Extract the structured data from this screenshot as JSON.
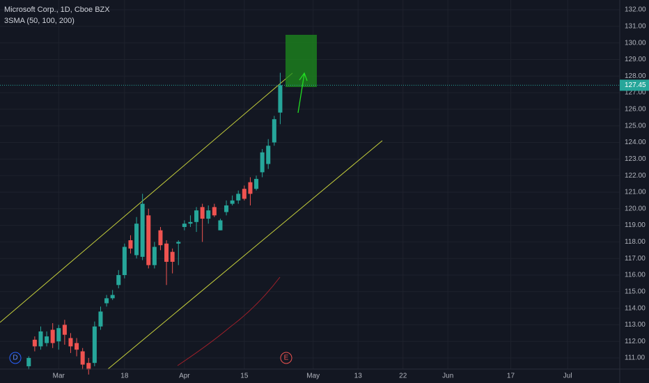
{
  "chart_data": {
    "type": "candlestick",
    "title": "Microsoft Corp., 1D, Cboe BZX",
    "indicator": "3SMA (50, 100, 200)",
    "open": [
      110.5,
      112.1,
      111.7,
      111.9,
      112.7,
      112.0,
      113.0,
      112.2,
      111.9,
      111.4,
      110.7,
      110.7,
      112.9,
      114.3,
      114.6,
      115.4,
      116.0,
      118.1,
      117.2,
      117.1,
      119.6,
      116.6,
      118.7,
      117.9,
      117.4,
      117.9,
      118.9,
      119.1,
      119.2,
      120.1,
      119.4,
      120.1,
      118.7,
      119.8,
      120.3,
      120.5,
      121.2,
      121.6,
      121.2,
      122.2,
      122.7,
      124.0,
      125.8
    ],
    "high": [
      111.1,
      112.3,
      112.9,
      112.6,
      113.1,
      113.0,
      113.3,
      112.5,
      112.2,
      111.6,
      111.0,
      113.2,
      114.1,
      114.8,
      115.1,
      116.3,
      117.9,
      118.4,
      119.5,
      120.9,
      120.0,
      118.0,
      118.9,
      118.1,
      117.6,
      118.1,
      119.3,
      119.6,
      120.1,
      120.3,
      120.2,
      120.3,
      119.4,
      120.5,
      120.8,
      121.1,
      121.4,
      121.9,
      122.0,
      123.6,
      124.2,
      125.6,
      128.2
    ],
    "low": [
      110.3,
      111.4,
      111.5,
      111.7,
      111.6,
      111.5,
      111.8,
      111.3,
      111.1,
      110.3,
      110.0,
      110.5,
      112.7,
      114.1,
      114.5,
      115.2,
      115.8,
      117.3,
      117.0,
      116.9,
      116.4,
      116.4,
      117.5,
      115.4,
      116.1,
      116.6,
      118.7,
      118.9,
      118.6,
      118.0,
      119.1,
      119.5,
      118.7,
      119.6,
      120.2,
      120.3,
      120.5,
      120.2,
      121.1,
      121.9,
      122.4,
      123.8,
      125.1
    ],
    "close": [
      111.0,
      111.7,
      112.6,
      112.3,
      111.9,
      112.8,
      112.4,
      111.7,
      111.5,
      110.6,
      110.3,
      112.9,
      113.8,
      114.6,
      114.8,
      116.0,
      117.7,
      117.6,
      119.1,
      120.3,
      116.6,
      117.7,
      117.8,
      116.8,
      116.8,
      118.0,
      119.1,
      119.2,
      119.9,
      119.4,
      119.9,
      119.6,
      119.3,
      120.2,
      120.5,
      120.9,
      120.6,
      120.9,
      121.8,
      123.4,
      123.8,
      125.4,
      127.45
    ],
    "up_color": "#26a69a",
    "down_color": "#ef5350",
    "last_price": 127.45,
    "annotations": [
      "D",
      "E"
    ],
    "xlim": [
      -4.8,
      98.7
    ],
    "xticks": [
      {
        "value": 5,
        "label": "Mar"
      },
      {
        "value": 16,
        "label": "18"
      },
      {
        "value": 26,
        "label": "Apr"
      },
      {
        "value": 36,
        "label": "15"
      },
      {
        "value": 47.5,
        "label": "May"
      },
      {
        "value": 55,
        "label": "13"
      },
      {
        "value": 62.5,
        "label": "22"
      },
      {
        "value": 70,
        "label": "Jun"
      },
      {
        "value": 80.5,
        "label": "17"
      },
      {
        "value": 90,
        "label": "Jul"
      }
    ],
    "ylim": [
      110.33,
      132.59
    ],
    "yticks": [
      {
        "value": 111,
        "label": "111.00"
      },
      {
        "value": 112,
        "label": "112.00"
      },
      {
        "value": 113,
        "label": "113.00"
      },
      {
        "value": 114,
        "label": "114.00"
      },
      {
        "value": 115,
        "label": "115.00"
      },
      {
        "value": 116,
        "label": "116.00"
      },
      {
        "value": 117,
        "label": "117.00"
      },
      {
        "value": 118,
        "label": "118.00"
      },
      {
        "value": 119,
        "label": "119.00"
      },
      {
        "value": 120,
        "label": "120.00"
      },
      {
        "value": 121,
        "label": "121.00"
      },
      {
        "value": 122,
        "label": "122.00"
      },
      {
        "value": 123,
        "label": "123.00"
      },
      {
        "value": 124,
        "label": "124.00"
      },
      {
        "value": 125,
        "label": "125.00"
      },
      {
        "value": 126,
        "label": "126.00"
      },
      {
        "value": 127,
        "label": "127.00"
      },
      {
        "value": 128,
        "label": "128.00"
      },
      {
        "value": 129,
        "label": "129.00"
      },
      {
        "value": 130,
        "label": "130.00"
      },
      {
        "value": 131,
        "label": "131.00"
      },
      {
        "value": 132,
        "label": "132.00"
      }
    ],
    "grid": true
  }
}
